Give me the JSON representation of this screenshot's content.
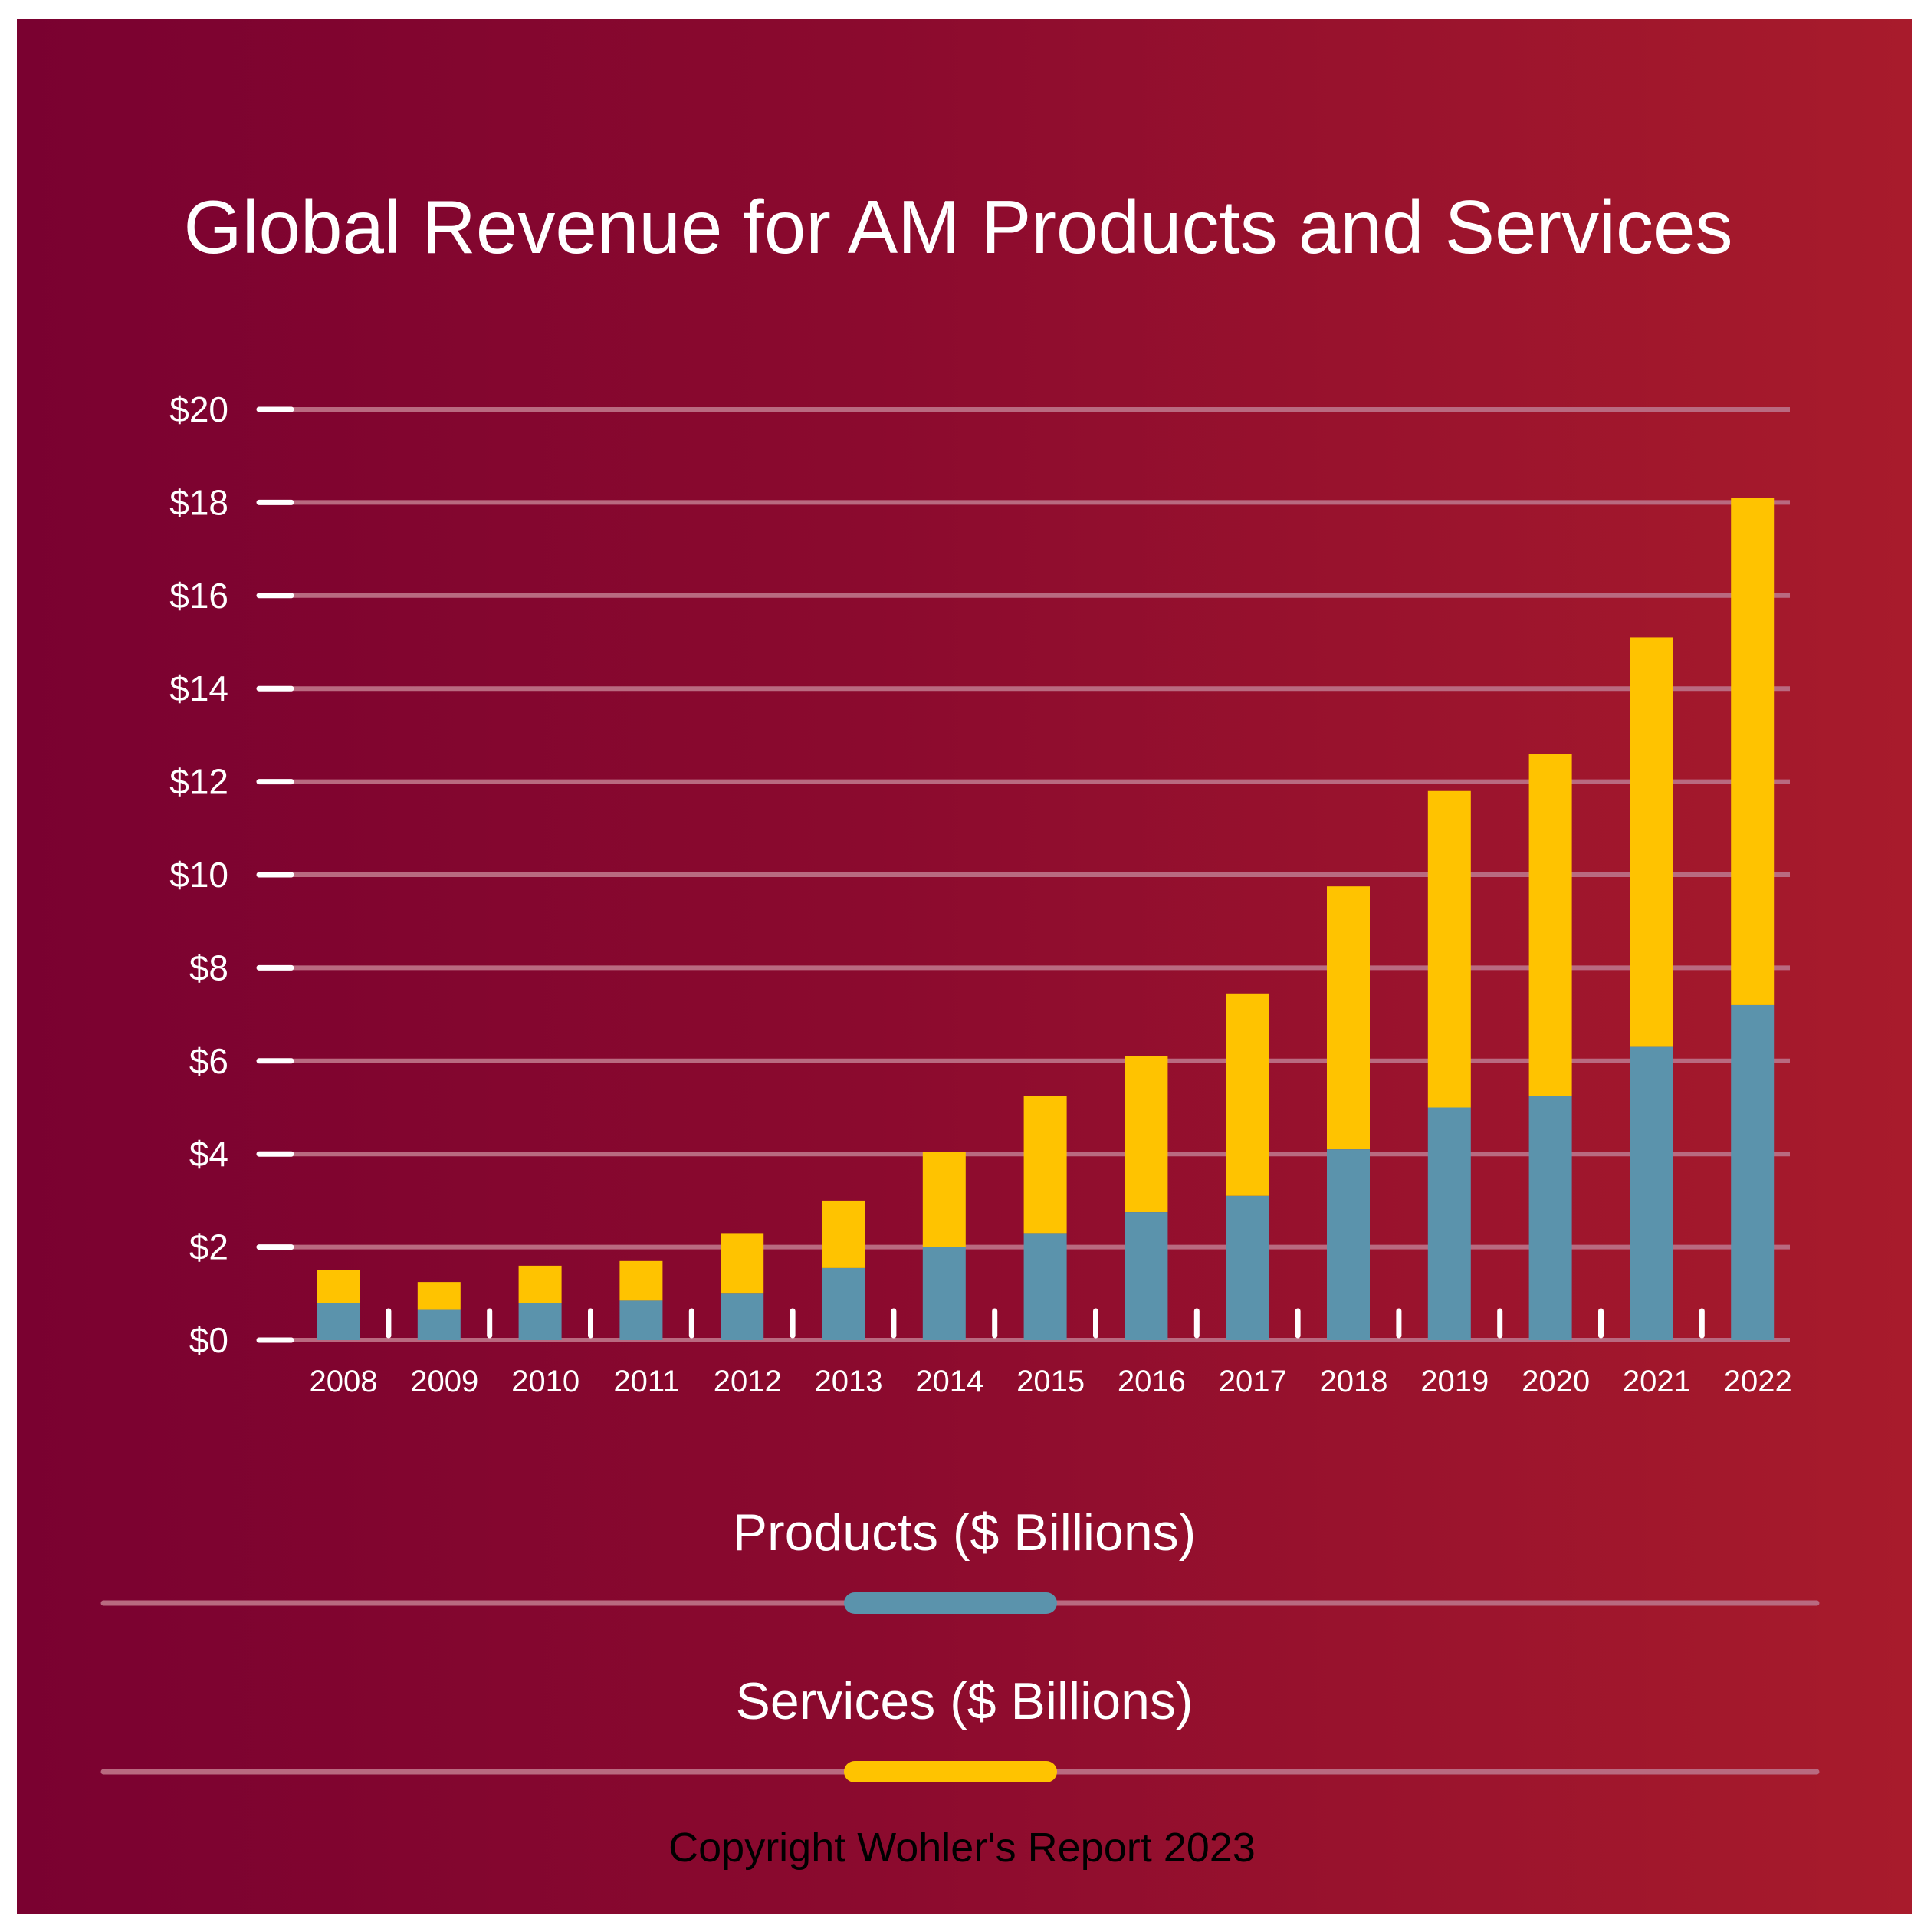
{
  "chart_data": {
    "type": "bar",
    "stacked": true,
    "title": "Global Revenue for AM Products and Services",
    "categories": [
      "2008",
      "2009",
      "2010",
      "2011",
      "2012",
      "2013",
      "2014",
      "2015",
      "2016",
      "2017",
      "2018",
      "2019",
      "2020",
      "2021",
      "2022"
    ],
    "series": [
      {
        "name": "Products ($ Billions)",
        "color": "#5b93ac",
        "values": [
          0.8,
          0.65,
          0.8,
          0.85,
          1.0,
          1.55,
          2.0,
          2.3,
          2.75,
          3.1,
          4.1,
          5.0,
          5.25,
          6.3,
          7.2
        ]
      },
      {
        "name": "Services ($ Billions)",
        "color": "#ffc300",
        "values": [
          0.7,
          0.6,
          0.8,
          0.85,
          1.3,
          1.45,
          2.05,
          2.95,
          3.35,
          4.35,
          5.65,
          6.8,
          7.35,
          8.8,
          10.9
        ]
      }
    ],
    "ylim": [
      0,
      20
    ],
    "yticks": [
      "$0",
      "$2",
      "$4",
      "$6",
      "$8",
      "$10",
      "$12",
      "$14",
      "$16",
      "$18",
      "$20"
    ],
    "xlabel": "",
    "ylabel": "",
    "grid": true,
    "legend_position": "bottom-center"
  },
  "legend": {
    "products_label": "Products ($ Billions)",
    "services_label": "Services ($ Billions)"
  },
  "copyright": "Copyright Wohler's Report 2023",
  "colors": {
    "background_start": "#7a0130",
    "background_end": "#a81b2c",
    "products": "#5b93ac",
    "services": "#ffc300",
    "grid": "#b96a80"
  }
}
